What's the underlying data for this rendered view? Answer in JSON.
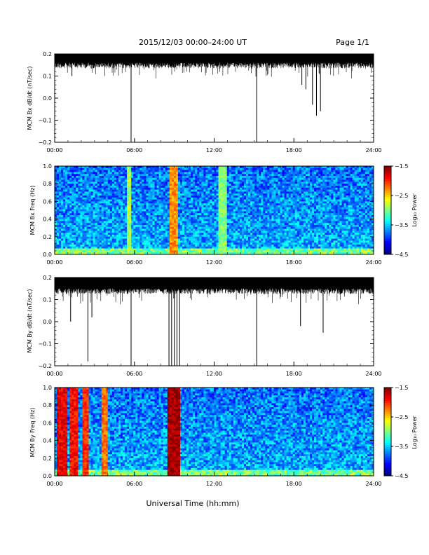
{
  "header": {
    "title": "2015/12/03  00:00–24:00 UT",
    "page": "Page 1/1"
  },
  "xlabel": "Universal Time (hh:mm)",
  "chart_data": [
    {
      "type": "line",
      "ylabel": "MCM Bx dB/dt (nT/sec)",
      "xlim": [
        0,
        24
      ],
      "ylim": [
        -0.2,
        0.2
      ],
      "yticks": [
        "0.2",
        "0.1",
        "0.0",
        "−0.1",
        "−0.2"
      ],
      "xticks": [
        "00:00",
        "06:00",
        "12:00",
        "18:00",
        "24:00"
      ],
      "baseline": 0.18,
      "spikes": [
        {
          "x": 1.3,
          "y": 0.1
        },
        {
          "x": 5.75,
          "y": -0.2
        },
        {
          "x": 15.2,
          "y": -0.2
        },
        {
          "x": 19.4,
          "y": -0.03
        },
        {
          "x": 19.7,
          "y": -0.08
        },
        {
          "x": 20.0,
          "y": -0.06
        },
        {
          "x": 18.6,
          "y": 0.06
        },
        {
          "x": 18.9,
          "y": 0.04
        }
      ]
    },
    {
      "type": "heatmap",
      "ylabel": "MCM Bx Freq (Hz)",
      "xlim": [
        0,
        24
      ],
      "ylim": [
        0,
        1
      ],
      "yticks": [
        "1.0",
        "0.8",
        "0.6",
        "0.4",
        "0.2",
        "0.0"
      ],
      "xticks": [
        "00:00",
        "06:00",
        "12:00",
        "18:00",
        "24:00"
      ],
      "colorbar": {
        "label": "Log₁₀ Power",
        "ticks": [
          "−1.5",
          "−2.5",
          "−3.5",
          "−4.5"
        ],
        "range": [
          -4.5,
          -1.5
        ]
      },
      "features": [
        {
          "x": 9.0,
          "width": 0.3,
          "level": -2.3
        },
        {
          "x": 5.6,
          "width": 0.2,
          "level": -2.9
        },
        {
          "x": 12.6,
          "width": 0.3,
          "level": -3.0
        }
      ]
    },
    {
      "type": "line",
      "ylabel": "MCM By dB/dt (nT/sec)",
      "xlim": [
        0,
        24
      ],
      "ylim": [
        -0.2,
        0.2
      ],
      "yticks": [
        "0.2",
        "0.1",
        "0.0",
        "−0.1",
        "−0.2"
      ],
      "xticks": [
        "00:00",
        "06:00",
        "12:00",
        "18:00",
        "24:00"
      ],
      "baseline": 0.17,
      "spikes": [
        {
          "x": 2.5,
          "y": -0.18
        },
        {
          "x": 1.2,
          "y": 0.0
        },
        {
          "x": 2.8,
          "y": 0.02
        },
        {
          "x": 5.75,
          "y": -0.2
        },
        {
          "x": 15.2,
          "y": -0.2
        },
        {
          "x": 8.6,
          "y": -0.2
        },
        {
          "x": 8.8,
          "y": -0.2
        },
        {
          "x": 9.0,
          "y": -0.2
        },
        {
          "x": 9.2,
          "y": -0.2
        },
        {
          "x": 9.4,
          "y": -0.2
        },
        {
          "x": 20.2,
          "y": -0.05
        },
        {
          "x": 18.5,
          "y": -0.02
        }
      ]
    },
    {
      "type": "heatmap",
      "ylabel": "MCM By Freq (Hz)",
      "xlim": [
        0,
        24
      ],
      "ylim": [
        0,
        1
      ],
      "yticks": [
        "1.0",
        "0.8",
        "0.6",
        "0.4",
        "0.2",
        "0.0"
      ],
      "xticks": [
        "00:00",
        "06:00",
        "12:00",
        "18:00",
        "24:00"
      ],
      "colorbar": {
        "label": "Log₁₀ Power",
        "ticks": [
          "−1.5",
          "−2.5",
          "−3.5",
          "−4.5"
        ],
        "range": [
          -4.5,
          -1.5
        ]
      },
      "features": [
        {
          "x": 9.0,
          "width": 0.5,
          "level": -1.6
        },
        {
          "x": 0.6,
          "width": 0.4,
          "level": -1.8
        },
        {
          "x": 1.4,
          "width": 0.3,
          "level": -1.9
        },
        {
          "x": 2.3,
          "width": 0.2,
          "level": -2.0
        },
        {
          "x": 3.8,
          "width": 0.2,
          "level": -2.2
        }
      ]
    }
  ]
}
